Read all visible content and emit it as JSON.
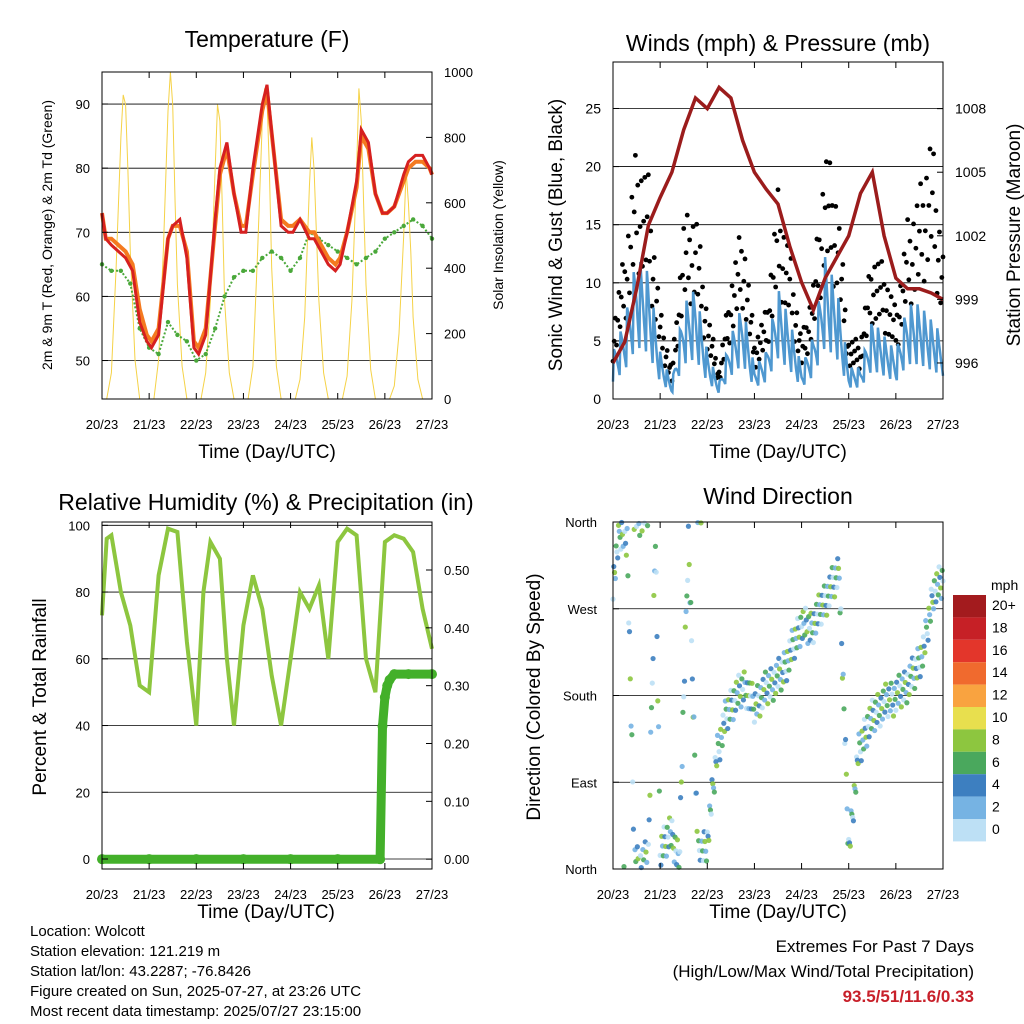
{
  "x_ticks": [
    "20/23",
    "21/23",
    "22/23",
    "23/23",
    "24/23",
    "25/23",
    "26/23",
    "27/23"
  ],
  "x_label": "Time (Day/UTC)",
  "colors": {
    "temp9m": "#d62020",
    "temp2m": "#f47a20",
    "dewpoint": "#4aa83a",
    "solar": "#f5d247",
    "wind": "#4f98d0",
    "gust": "#000000",
    "pressure": "#9b1c1c",
    "rh": "#8dc63f",
    "rain": "#43b02a"
  },
  "panels": {
    "temperature": {
      "title": "Temperature (F)",
      "ylabel": "2m & 9m T (Red, Orange) & 2m Td (Green)",
      "y2label": "Solar Insolation (Yellow)",
      "y_ticks": [
        "50",
        "60",
        "70",
        "80",
        "90"
      ],
      "y2_ticks": [
        "0",
        "200",
        "400",
        "600",
        "800",
        "1000"
      ]
    },
    "winds": {
      "title": "Winds (mph) & Pressure (mb)",
      "ylabel": "Sonic Wind & Gust (Blue, Black)",
      "y2label": "Station Pressure (Maroon)",
      "y_ticks": [
        "0",
        "5",
        "10",
        "15",
        "20",
        "25"
      ],
      "y2_ticks": [
        "996",
        "999",
        "1002",
        "1005",
        "1008"
      ]
    },
    "humidity": {
      "title": "Relative Humidity (%) & Precipitation (in)",
      "ylabel": "Percent & Total Rainfall",
      "y_ticks": [
        "0",
        "20",
        "40",
        "60",
        "80",
        "100"
      ],
      "y2_ticks": [
        "0.00",
        "0.10",
        "0.20",
        "0.30",
        "0.40",
        "0.50"
      ]
    },
    "direction": {
      "title": "Wind Direction",
      "ylabel": "Direction (Colored By Speed)",
      "y_ticks": [
        "North",
        "East",
        "South",
        "West",
        "North"
      ],
      "legend_title": "mph",
      "legend_labels": [
        "20+",
        "18",
        "16",
        "14",
        "12",
        "10",
        "8",
        "6",
        "4",
        "2",
        "0"
      ],
      "legend_colors": [
        "#a31b1e",
        "#c62026",
        "#e3362b",
        "#f06a2e",
        "#f9a340",
        "#e8df4e",
        "#8dc63f",
        "#4aa85d",
        "#3d7fc0",
        "#76b3e3",
        "#bde0f5"
      ]
    }
  },
  "chart_data": [
    {
      "type": "line",
      "title": "Temperature (F)",
      "x": [
        "20/23",
        "21/23",
        "22/23",
        "23/23",
        "24/23",
        "25/23",
        "26/23",
        "27/23"
      ],
      "ylim": [
        44,
        95
      ],
      "y2lim": [
        0,
        1000
      ],
      "series": [
        {
          "axis": "y",
          "x": [
            0,
            0.08,
            0.2,
            0.35,
            0.5,
            0.65,
            0.8,
            0.95,
            1.05,
            1.2,
            1.4,
            1.5,
            1.65,
            1.8,
            1.95,
            2.05,
            2.2,
            2.4,
            2.5,
            2.65,
            2.8,
            2.95,
            3.05,
            3.2,
            3.4,
            3.5,
            3.65,
            3.8,
            3.95,
            4.05,
            4.2,
            4.4,
            4.5,
            4.65,
            4.8,
            4.95,
            5.05,
            5.2,
            5.4,
            5.5,
            5.65,
            5.8,
            5.95,
            6.05,
            6.2,
            6.4,
            6.5,
            6.65,
            6.8,
            6.95,
            7
          ],
          "values": [
            73,
            69,
            68,
            67,
            66,
            64,
            56,
            53,
            52,
            54,
            69,
            71,
            72,
            66,
            52,
            51,
            54,
            72,
            80,
            84,
            76,
            70,
            70,
            80,
            90,
            93,
            82,
            71,
            70,
            70,
            72,
            69,
            69,
            67,
            65,
            64,
            65,
            70,
            78,
            86,
            84,
            76,
            73,
            73,
            74,
            79,
            81,
            82,
            82,
            80,
            79
          ]
        },
        {
          "axis": "y",
          "x": [
            0,
            0.08,
            0.2,
            0.35,
            0.5,
            0.65,
            0.8,
            0.95,
            1.05,
            1.2,
            1.4,
            1.5,
            1.65,
            1.8,
            1.95,
            2.05,
            2.2,
            2.4,
            2.5,
            2.65,
            2.8,
            2.95,
            3.05,
            3.2,
            3.4,
            3.5,
            3.65,
            3.8,
            3.95,
            4.05,
            4.2,
            4.4,
            4.5,
            4.65,
            4.8,
            4.95,
            5.05,
            5.2,
            5.4,
            5.5,
            5.65,
            5.8,
            5.95,
            6.05,
            6.2,
            6.4,
            6.5,
            6.65,
            6.8,
            6.95,
            7
          ],
          "values": [
            73,
            69,
            69,
            68,
            67,
            65,
            58,
            54,
            53,
            55,
            69,
            71,
            71,
            67,
            53,
            52,
            55,
            71,
            79,
            83,
            76,
            71,
            71,
            79,
            89,
            92,
            82,
            72,
            71,
            71,
            72,
            70,
            70,
            68,
            66,
            65,
            66,
            70,
            77,
            85,
            83,
            76,
            73,
            73,
            74,
            78,
            80,
            81,
            81,
            80,
            79
          ]
        },
        {
          "axis": "y",
          "x": [
            0,
            0.2,
            0.4,
            0.6,
            0.8,
            1,
            1.2,
            1.4,
            1.6,
            1.8,
            2,
            2.2,
            2.4,
            2.6,
            2.8,
            3,
            3.2,
            3.4,
            3.6,
            3.8,
            4,
            4.2,
            4.4,
            4.6,
            4.8,
            5,
            5.2,
            5.4,
            5.6,
            5.8,
            6,
            6.2,
            6.4,
            6.6,
            6.8,
            7
          ],
          "values": [
            65,
            64,
            64,
            62,
            55,
            52,
            51,
            56,
            54,
            53,
            50,
            51,
            55,
            60,
            63,
            64,
            64,
            66,
            67,
            66,
            64,
            66,
            70,
            69,
            68,
            67,
            66,
            65,
            66,
            67,
            69,
            70,
            71,
            72,
            71,
            69
          ]
        },
        {
          "axis": "y2",
          "x": [
            0,
            0.1,
            0.2,
            0.3,
            0.4,
            0.45,
            0.5,
            0.55,
            0.6,
            0.7,
            0.8,
            1.1,
            1.2,
            1.3,
            1.4,
            1.45,
            1.5,
            1.55,
            1.6,
            1.7,
            1.8,
            2.1,
            2.2,
            2.3,
            2.4,
            2.45,
            2.5,
            2.55,
            2.6,
            2.7,
            2.8,
            3.1,
            3.2,
            3.3,
            3.4,
            3.45,
            3.5,
            3.55,
            3.6,
            3.7,
            3.8,
            4.1,
            4.2,
            4.3,
            4.4,
            4.45,
            4.5,
            4.55,
            4.6,
            4.7,
            4.8,
            5.1,
            5.2,
            5.3,
            5.4,
            5.45,
            5.5,
            5.55,
            5.6,
            5.7,
            5.8,
            6.1,
            6.2,
            6.3,
            6.4,
            6.45,
            6.5,
            6.55,
            6.6,
            6.7,
            6.8,
            7
          ],
          "values": [
            0,
            0,
            80,
            400,
            800,
            930,
            900,
            700,
            450,
            120,
            0,
            0,
            120,
            450,
            880,
            1000,
            900,
            600,
            350,
            100,
            0,
            0,
            80,
            300,
            700,
            900,
            850,
            600,
            300,
            80,
            0,
            0,
            100,
            450,
            850,
            950,
            920,
            700,
            400,
            100,
            0,
            0,
            60,
            250,
            650,
            800,
            700,
            500,
            300,
            80,
            0,
            0,
            70,
            300,
            700,
            950,
            850,
            600,
            350,
            90,
            0,
            0,
            40,
            200,
            500,
            700,
            600,
            450,
            250,
            60,
            0,
            0
          ]
        }
      ]
    },
    {
      "type": "scatter",
      "title": "Winds (mph) & Pressure (mb)",
      "x": [
        "20/23",
        "21/23",
        "22/23",
        "23/23",
        "24/23",
        "25/23",
        "26/23",
        "27/23"
      ],
      "ylim": [
        0,
        29
      ],
      "y2lim": [
        994.3,
        1010.2
      ],
      "series": [
        {
          "axis": "y2",
          "x": [
            0,
            0.25,
            0.5,
            0.75,
            1,
            1.25,
            1.5,
            1.75,
            2,
            2.25,
            2.5,
            2.75,
            3,
            3.25,
            3.5,
            3.75,
            4,
            4.25,
            4.5,
            4.75,
            5,
            5.25,
            5.5,
            5.75,
            6,
            6.25,
            6.5,
            6.75,
            7
          ],
          "values": [
            996.0,
            997.0,
            999.5,
            1002.5,
            1003.8,
            1005.0,
            1007.0,
            1008.5,
            1008.0,
            1009.0,
            1008.5,
            1006.5,
            1005.0,
            1004.2,
            1003.5,
            1001.5,
            999.8,
            998.5,
            1000.0,
            1001.0,
            1002.0,
            1004.0,
            1005.0,
            1002.0,
            1000.0,
            999.5,
            999.5,
            999.3,
            999.0
          ]
        },
        {
          "axis": "y",
          "x": [
            0,
            0.25,
            0.5,
            0.75,
            1,
            1.25,
            1.5,
            1.75,
            2,
            2.25,
            2.5,
            2.75,
            3,
            3.25,
            3.5,
            3.75,
            4,
            4.25,
            4.5,
            4.75,
            5,
            5.25,
            5.5,
            5.75,
            6,
            6.25,
            6.5,
            6.75,
            7
          ],
          "values": [
            3,
            5,
            9,
            8,
            3,
            1,
            6,
            7,
            3,
            1,
            4,
            6,
            2,
            3,
            7,
            5,
            2,
            4,
            9,
            7,
            2,
            2,
            5,
            4,
            3,
            6,
            6,
            5,
            4
          ]
        },
        {
          "axis": "y",
          "x": [
            0,
            0.25,
            0.5,
            0.75,
            1,
            1.25,
            1.5,
            1.75,
            2,
            2.25,
            2.5,
            2.75,
            3,
            3.25,
            3.5,
            3.75,
            4,
            4.25,
            4.5,
            4.75,
            5,
            5.25,
            5.5,
            5.75,
            6,
            6.25,
            6.5,
            6.75,
            7
          ],
          "values": [
            5,
            10,
            17,
            15,
            6,
            2,
            12,
            13,
            6,
            2,
            8,
            12,
            4,
            6,
            14,
            10,
            4,
            8,
            17,
            14,
            4,
            4,
            10,
            9,
            6,
            12,
            14,
            18,
            10
          ]
        }
      ]
    },
    {
      "type": "line",
      "title": "Relative Humidity (%) & Precipitation (in)",
      "x": [
        "20/23",
        "21/23",
        "22/23",
        "23/23",
        "24/23",
        "25/23",
        "26/23",
        "27/23"
      ],
      "ylim": [
        -3,
        101
      ],
      "y2lim": [
        -0.017,
        0.583
      ],
      "series": [
        {
          "axis": "y",
          "x": [
            0,
            0.1,
            0.2,
            0.4,
            0.6,
            0.8,
            1,
            1.2,
            1.4,
            1.6,
            1.8,
            2,
            2.15,
            2.3,
            2.5,
            2.65,
            2.8,
            3,
            3.2,
            3.4,
            3.6,
            3.8,
            4,
            4.2,
            4.4,
            4.6,
            4.8,
            5,
            5.2,
            5.4,
            5.6,
            5.8,
            6,
            6.2,
            6.4,
            6.6,
            6.8,
            7
          ],
          "values": [
            73,
            96,
            97,
            80,
            70,
            52,
            50,
            85,
            99,
            98,
            65,
            40,
            80,
            95,
            90,
            60,
            40,
            70,
            85,
            75,
            55,
            40,
            60,
            80,
            75,
            82,
            60,
            95,
            99,
            97,
            60,
            50,
            95,
            97,
            96,
            92,
            75,
            63
          ]
        },
        {
          "axis": "y2",
          "x": [
            0,
            1,
            2,
            3,
            4,
            5,
            5.9,
            5.95,
            6,
            6.05,
            6.1,
            6.2,
            6.5,
            7
          ],
          "values": [
            0.0,
            0.0,
            0.0,
            0.0,
            0.0,
            0.0,
            0.0,
            0.23,
            0.28,
            0.3,
            0.31,
            0.32,
            0.32,
            0.32
          ]
        }
      ]
    },
    {
      "type": "scatter",
      "title": "Wind Direction",
      "x": [
        "20/23",
        "21/23",
        "22/23",
        "23/23",
        "24/23",
        "25/23",
        "26/23",
        "27/23"
      ],
      "ylim": [
        0,
        360
      ],
      "series": [
        {
          "name": "",
          "x": [
            0,
            0.15,
            0.3,
            0.45,
            0.6,
            0.75,
            0.9,
            1,
            1.2,
            1.4,
            1.6,
            1.8,
            2,
            2.2,
            2.4,
            2.6,
            2.8,
            3,
            3.2,
            3.4,
            3.6,
            3.8,
            4,
            4.2,
            4.4,
            4.6,
            4.8,
            5,
            5.2,
            5.4,
            5.6,
            5.8,
            6,
            6.2,
            6.4,
            6.6,
            6.8,
            7
          ],
          "values": [
            300,
            350,
            345,
            10,
            5,
            15,
            350,
            20,
            40,
            10,
            345,
            10,
            30,
            120,
            160,
            180,
            190,
            170,
            185,
            195,
            205,
            230,
            255,
            250,
            270,
            290,
            310,
            20,
            120,
            150,
            165,
            175,
            180,
            190,
            205,
            230,
            290,
            300
          ]
        }
      ]
    }
  ],
  "info": {
    "location": "Location: Wolcott",
    "elevation": "Station elevation: 121.219 m",
    "latlon": "Station lat/lon: 43.2287; -76.8426",
    "created": "Figure created on Sun, 2025-07-27, at 23:26 UTC",
    "recent": "Most recent data timestamp: 2025/07/27 23:15:00"
  },
  "extremes": {
    "line1": "Extremes For Past 7 Days",
    "line2": "(High/Low/Max Wind/Total Precipitation)",
    "values": "93.5/51/11.6/0.33"
  }
}
